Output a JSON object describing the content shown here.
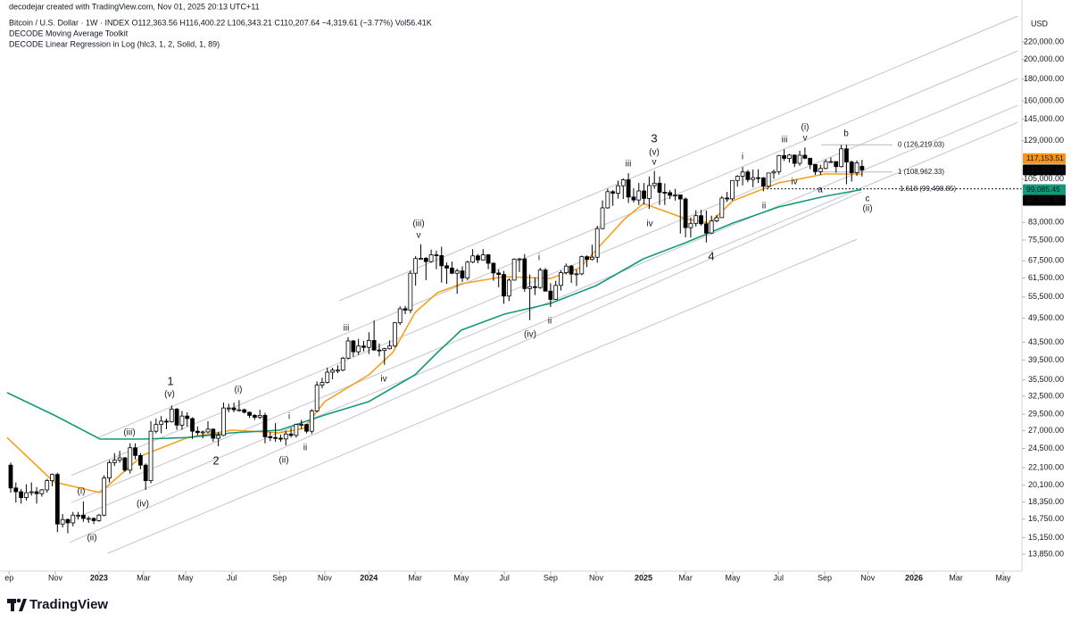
{
  "header": {
    "credit": "decodejar created with TradingView.com, Nov 01, 2025 20:13 UTC+11",
    "symbol": "Bitcoin / U.S. Dollar · 1W · INDEX  O112,363.56 H116,400.22 L106,343.21 C110,207.64 −4,319.61 (−3.77%) Vol56.41K",
    "indicator1": "DECODE Moving Average Toolkit",
    "indicator2": "DECODE Linear Regression in Log (hlc3, 1, 2, Solid, 1, 89)"
  },
  "branding": "TradingView",
  "chart_data": {
    "type": "candlestick",
    "currency": "USD",
    "yscale": "log",
    "up_color": "#ffffff",
    "down_color": "#000000",
    "xlim": [
      -2.06,
      194.8
    ],
    "xticks": [
      {
        "value": -0.3,
        "label": "ep"
      },
      {
        "value": 8.6,
        "label": "Nov"
      },
      {
        "value": 17.0,
        "label": "2023"
      },
      {
        "value": 25.6,
        "label": "Mar"
      },
      {
        "value": 33.7,
        "label": "May"
      },
      {
        "value": 42.6,
        "label": "Jul"
      },
      {
        "value": 51.8,
        "label": "Sep"
      },
      {
        "value": 60.5,
        "label": "Nov"
      },
      {
        "value": 69.0,
        "label": "2024"
      },
      {
        "value": 77.9,
        "label": "Mar"
      },
      {
        "value": 86.8,
        "label": "May"
      },
      {
        "value": 95.1,
        "label": "Jul"
      },
      {
        "value": 104.0,
        "label": "Sep"
      },
      {
        "value": 112.8,
        "label": "Nov"
      },
      {
        "value": 121.9,
        "label": "2025"
      },
      {
        "value": 130.0,
        "label": "Mar"
      },
      {
        "value": 139.1,
        "label": "May"
      },
      {
        "value": 147.9,
        "label": "Jul"
      },
      {
        "value": 156.8,
        "label": "Sep"
      },
      {
        "value": 165.1,
        "label": "Nov"
      },
      {
        "value": 174.0,
        "label": "2026"
      },
      {
        "value": 182.1,
        "label": "Mar"
      },
      {
        "value": 191.2,
        "label": "May"
      }
    ],
    "ylim": [
      12640,
      275800
    ],
    "yticks": [
      {
        "value": 220000,
        "label": "220,000.00"
      },
      {
        "value": 200000,
        "label": "200,000.00"
      },
      {
        "value": 180000,
        "label": "180,000.00"
      },
      {
        "value": 160000,
        "label": "160,000.00"
      },
      {
        "value": 145000,
        "label": "145,000.00"
      },
      {
        "value": 129000,
        "label": "129,000.00"
      },
      {
        "value": 105000,
        "label": "105,000.00"
      },
      {
        "value": 83000,
        "label": "83,000.00"
      },
      {
        "value": 75500,
        "label": "75,500.00"
      },
      {
        "value": 67500,
        "label": "67,500.00"
      },
      {
        "value": 61500,
        "label": "61,500.00"
      },
      {
        "value": 55500,
        "label": "55,500.00"
      },
      {
        "value": 49500,
        "label": "49,500.00"
      },
      {
        "value": 43500,
        "label": "43,500.00"
      },
      {
        "value": 39500,
        "label": "39,500.00"
      },
      {
        "value": 35500,
        "label": "35,500.00"
      },
      {
        "value": 32500,
        "label": "32,500.00"
      },
      {
        "value": 29500,
        "label": "29,500.00"
      },
      {
        "value": 27000,
        "label": "27,000.00"
      },
      {
        "value": 24500,
        "label": "24,500.00"
      },
      {
        "value": 22100,
        "label": "22,100.00"
      },
      {
        "value": 20100,
        "label": "20,100.00"
      },
      {
        "value": 18350,
        "label": "18,350.00"
      },
      {
        "value": 16750,
        "label": "16,750.00"
      },
      {
        "value": 15150,
        "label": "15,150.00"
      },
      {
        "value": 13850,
        "label": "13,850.00"
      }
    ],
    "open": [
      22400,
      19800,
      19400,
      18800,
      19300,
      19400,
      19200,
      19600,
      20600,
      21300,
      16300,
      16700,
      16400,
      17100,
      17100,
      16800,
      16800,
      16600,
      17100,
      20900,
      22700,
      23000,
      23300,
      21800,
      24600,
      23600,
      22400,
      20600,
      26900,
      27900,
      28400,
      28300,
      30300,
      27800,
      29200,
      28800,
      26900,
      26700,
      26800,
      27200,
      25900,
      26300,
      30500,
      30500,
      30200,
      30200,
      29800,
      29300,
      29000,
      29300,
      26100,
      26000,
      25900,
      25800,
      26500,
      26300,
      27900,
      27900,
      26900,
      30000,
      34500,
      35000,
      37000,
      37400,
      37400,
      39900,
      43800,
      41300,
      42600,
      42300,
      43900,
      41700,
      41600,
      42000,
      42600,
      48300,
      52100,
      51700,
      63100,
      68300,
      68400,
      67200,
      69700,
      69400,
      65700,
      64900,
      63100,
      63900,
      61500,
      67000,
      69300,
      67800,
      69700,
      66600,
      63200,
      62700,
      55800,
      60800,
      68100,
      68200,
      58100,
      58700,
      58400,
      64200,
      57300,
      54800,
      59100,
      63300,
      65600,
      62800,
      62900,
      69000,
      68000,
      68800,
      80300,
      89800,
      98000,
      97200,
      101200,
      104500,
      95200,
      93700,
      98400,
      94500,
      101300,
      102600,
      97700,
      97500,
      96100,
      96300,
      94200,
      80700,
      82600,
      86100,
      82400,
      78400,
      83700,
      85200,
      94700,
      94300,
      104100,
      106500,
      109000,
      104600,
      105700,
      105600,
      100900,
      108400,
      109200,
      119100,
      117300,
      119400,
      114200,
      119300,
      117400,
      113500,
      109200,
      111100,
      115300,
      115300,
      112200,
      123500,
      115000,
      108600,
      112363.56
    ],
    "high": [
      22700,
      20400,
      19700,
      20200,
      20400,
      19900,
      19700,
      20800,
      21400,
      21500,
      17200,
      16800,
      17400,
      17400,
      18400,
      17000,
      16900,
      17200,
      21200,
      23000,
      23900,
      24200,
      23400,
      25200,
      25200,
      23900,
      22600,
      28400,
      28800,
      29200,
      28800,
      30900,
      30500,
      30000,
      29800,
      29000,
      27600,
      27000,
      28400,
      27300,
      26800,
      31400,
      31200,
      31400,
      31800,
      30400,
      29900,
      29500,
      30200,
      29700,
      26800,
      28100,
      26400,
      27000,
      27400,
      28000,
      28600,
      28000,
      30300,
      35200,
      35900,
      37900,
      37900,
      38400,
      40200,
      44700,
      44000,
      44300,
      43800,
      45900,
      48900,
      43200,
      42200,
      43900,
      48500,
      52800,
      52900,
      64000,
      69200,
      73800,
      68900,
      71700,
      71300,
      72800,
      66900,
      67200,
      64700,
      65500,
      67500,
      71900,
      70000,
      71900,
      70000,
      66900,
      64400,
      63900,
      61400,
      68400,
      68500,
      70000,
      62700,
      61700,
      65000,
      64900,
      59800,
      60600,
      64100,
      66500,
      66000,
      64400,
      69400,
      69500,
      73600,
      81500,
      93500,
      99600,
      98900,
      104000,
      105300,
      108300,
      99900,
      102700,
      102700,
      106400,
      109600,
      106400,
      102500,
      98800,
      99500,
      96500,
      95000,
      85300,
      88700,
      88800,
      88500,
      86100,
      86400,
      95700,
      97900,
      104300,
      107100,
      111900,
      110200,
      110500,
      110600,
      106100,
      108500,
      110500,
      119500,
      123200,
      120200,
      119800,
      122300,
      124400,
      117600,
      113800,
      113300,
      116700,
      117900,
      115400,
      126100,
      126200,
      115900,
      116000,
      116400.22
    ],
    "low": [
      19300,
      18300,
      18200,
      18500,
      19000,
      18200,
      18900,
      19300,
      20000,
      15600,
      16000,
      15500,
      16100,
      16700,
      16500,
      16400,
      16300,
      16500,
      17000,
      20400,
      22300,
      22700,
      21600,
      21400,
      23100,
      21900,
      19600,
      20300,
      26600,
      26600,
      27200,
      28200,
      27100,
      27100,
      27600,
      25800,
      26300,
      25900,
      26600,
      25400,
      24800,
      26200,
      29800,
      29800,
      29900,
      29600,
      28900,
      28600,
      28700,
      25200,
      25500,
      25400,
      25400,
      24900,
      26000,
      26000,
      27200,
      26600,
      26500,
      29800,
      33900,
      34800,
      35600,
      36800,
      37200,
      39700,
      40200,
      40600,
      41400,
      40800,
      41500,
      40300,
      38500,
      41800,
      42300,
      47700,
      50600,
      50900,
      59000,
      68000,
      60800,
      66800,
      64500,
      60000,
      59600,
      62800,
      56500,
      60200,
      60700,
      66600,
      66600,
      67600,
      64500,
      60600,
      58500,
      53500,
      54300,
      60700,
      63500,
      57100,
      49000,
      56100,
      58000,
      57200,
      52600,
      54600,
      57500,
      62700,
      59900,
      58900,
      62400,
      65200,
      67600,
      66800,
      80000,
      89400,
      90800,
      94400,
      94200,
      92200,
      92500,
      91200,
      91400,
      89300,
      99500,
      91200,
      91200,
      94100,
      93400,
      78200,
      76600,
      76600,
      81200,
      81600,
      74500,
      78000,
      83100,
      85100,
      92800,
      93400,
      100700,
      101400,
      103100,
      100400,
      102700,
      98200,
      100000,
      105100,
      107500,
      115700,
      114700,
      111900,
      112700,
      116800,
      110700,
      107300,
      107300,
      110700,
      114400,
      108600,
      111700,
      102000,
      103500,
      106700,
      106343.21
    ],
    "close": [
      19800,
      19400,
      18800,
      19300,
      19400,
      19200,
      19600,
      20600,
      21300,
      16300,
      16700,
      16400,
      17100,
      17100,
      16800,
      16800,
      16600,
      17100,
      20900,
      22700,
      23000,
      23300,
      21800,
      24600,
      23600,
      22400,
      20600,
      26900,
      27900,
      28400,
      28300,
      30300,
      27800,
      29200,
      28800,
      26900,
      26700,
      26800,
      27200,
      25900,
      26300,
      30500,
      30500,
      30200,
      30200,
      29800,
      29300,
      29000,
      29300,
      26100,
      26000,
      25900,
      25800,
      26500,
      26300,
      27900,
      27900,
      26900,
      30000,
      34500,
      35000,
      37000,
      37400,
      37400,
      39900,
      43800,
      41300,
      42600,
      42300,
      43900,
      41700,
      41600,
      42000,
      42600,
      48300,
      52100,
      51700,
      63100,
      68300,
      68400,
      67200,
      69700,
      69400,
      65700,
      64900,
      63100,
      63900,
      61500,
      67000,
      69300,
      67800,
      69700,
      66600,
      63200,
      62700,
      55800,
      60800,
      68100,
      68200,
      58100,
      58700,
      58400,
      64200,
      57300,
      54800,
      59100,
      63300,
      65600,
      62800,
      62900,
      69000,
      68000,
      68800,
      80300,
      89800,
      98000,
      97200,
      101200,
      104500,
      95200,
      93700,
      98400,
      94500,
      101300,
      102600,
      97700,
      97500,
      96100,
      96300,
      94200,
      80700,
      82600,
      86100,
      82400,
      78400,
      83700,
      85200,
      94700,
      94300,
      104100,
      106500,
      109000,
      104600,
      105700,
      105600,
      100900,
      108400,
      109200,
      119100,
      117300,
      119400,
      114200,
      119300,
      117400,
      113500,
      109200,
      111100,
      115300,
      115300,
      112200,
      123500,
      115000,
      108600,
      114500,
      110207.64
    ],
    "moving_averages": [
      {
        "color": "#f5a01e",
        "x": [
          -0.7,
          8.3,
          17.2,
          25.5,
          34.1,
          42.6,
          51.8,
          56.4,
          60.5,
          69.0,
          73.6,
          77.9,
          82.2,
          86.8,
          95.1,
          104.0,
          109.7,
          112.8,
          118.3,
          121.9,
          130.0,
          134.7,
          139.1,
          147.9,
          156.8,
          163.9
        ],
        "values": [
          26000,
          20460,
          19310,
          23640,
          26000,
          27060,
          26670,
          27310,
          31570,
          36470,
          41150,
          51080,
          56800,
          59620,
          61950,
          61340,
          65000,
          71600,
          84700,
          91970,
          84700,
          82700,
          93300,
          102750,
          107800,
          107800
        ]
      },
      {
        "color": "#139a7b",
        "x": [
          -0.7,
          8.3,
          17.2,
          25.5,
          34.1,
          42.6,
          51.8,
          60.5,
          69.0,
          77.9,
          82.2,
          86.8,
          95.1,
          104.0,
          112.8,
          121.9,
          130.0,
          139.1,
          147.9,
          156.8,
          163.9
        ],
        "values": [
          33130,
          29360,
          25780,
          25780,
          26000,
          26670,
          27060,
          29360,
          31570,
          36470,
          41150,
          46400,
          50610,
          53630,
          59040,
          68210,
          74390,
          82700,
          90210,
          95580,
          99085.45
        ]
      }
    ],
    "channel": [
      {
        "x": [
          63.3,
          194
        ],
        "values": [
          54400,
          252900
        ]
      },
      {
        "x": [
          16.9,
          194
        ],
        "values": [
          26000,
          209600
        ]
      },
      {
        "x": [
          11.7,
          194
        ],
        "values": [
          21200,
          180500
        ]
      },
      {
        "x": [
          11.7,
          194
        ],
        "values": [
          18300,
          156200
        ]
      },
      {
        "x": [
          11.35,
          194
        ],
        "values": [
          16600,
          142500
        ]
      },
      {
        "x": [
          11.35,
          163.9
        ],
        "values": [
          14750,
          97900
        ]
      },
      {
        "x": [
          18.6,
          163
        ],
        "values": [
          13900,
          75800
        ]
      }
    ],
    "fib_levels": [
      {
        "value": 126219.03,
        "label": "0 (126,219.03)",
        "color": "#8a8a8a"
      },
      {
        "value": 108962.33,
        "label": "1 (108,962.33)",
        "color": "#8a8a8a"
      },
      {
        "value": 99498.85,
        "label": "1.618 (99,498.85)",
        "color": "#2962ff"
      }
    ],
    "price_labels": [
      {
        "value": 117153.51,
        "label": "117,153.51",
        "color": "#f7931a"
      },
      {
        "value": 110207.64,
        "label": "110,207.64",
        "color": "#000000"
      },
      {
        "value": 99085.45,
        "label": "99,085.45",
        "color": "#139a7b"
      },
      {
        "value": 98330.3,
        "label": "98,330.30",
        "color": "#000000"
      }
    ],
    "wave_labels": [
      "1",
      "(v)",
      "(iii)",
      "(i)",
      "(ii)",
      "(iv)",
      "2",
      "(i)",
      "i",
      "ii",
      "(ii)",
      "iii",
      "iv",
      "(iii)",
      "v",
      "i",
      "ii",
      "(iv)",
      "3",
      "(v)",
      "v",
      "iii",
      "iv",
      "4",
      "i",
      "ii",
      "iii",
      "iv",
      "(i)",
      "v",
      "b",
      "a",
      "c",
      "(ii)"
    ]
  }
}
